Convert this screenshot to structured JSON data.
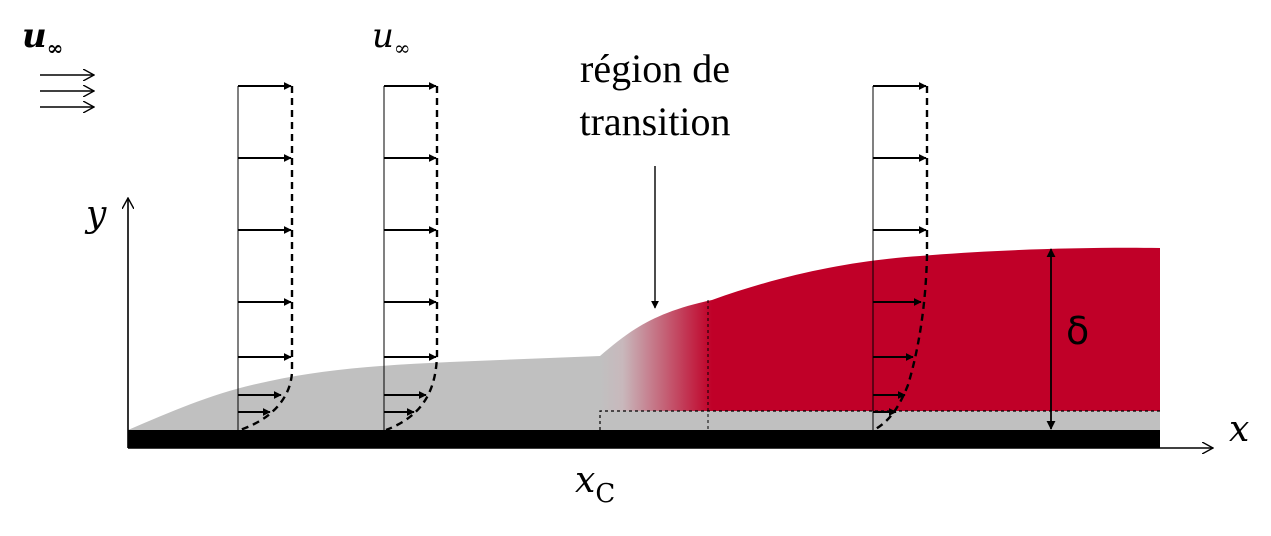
{
  "colors": {
    "laminar": "#c0c0c0",
    "turbulent": "#c00028",
    "wall": "#000000",
    "line": "#000000"
  },
  "labels": {
    "free_stream_left": {
      "base": "u",
      "sub": "∞"
    },
    "free_stream_profile": {
      "base": "u",
      "sub": "∞"
    },
    "transition_line1": "région de",
    "transition_line2": "transition",
    "y_axis": "y",
    "x_axis": "x",
    "x_critical": {
      "base": "x",
      "sub": "C"
    },
    "thickness": "δ"
  }
}
